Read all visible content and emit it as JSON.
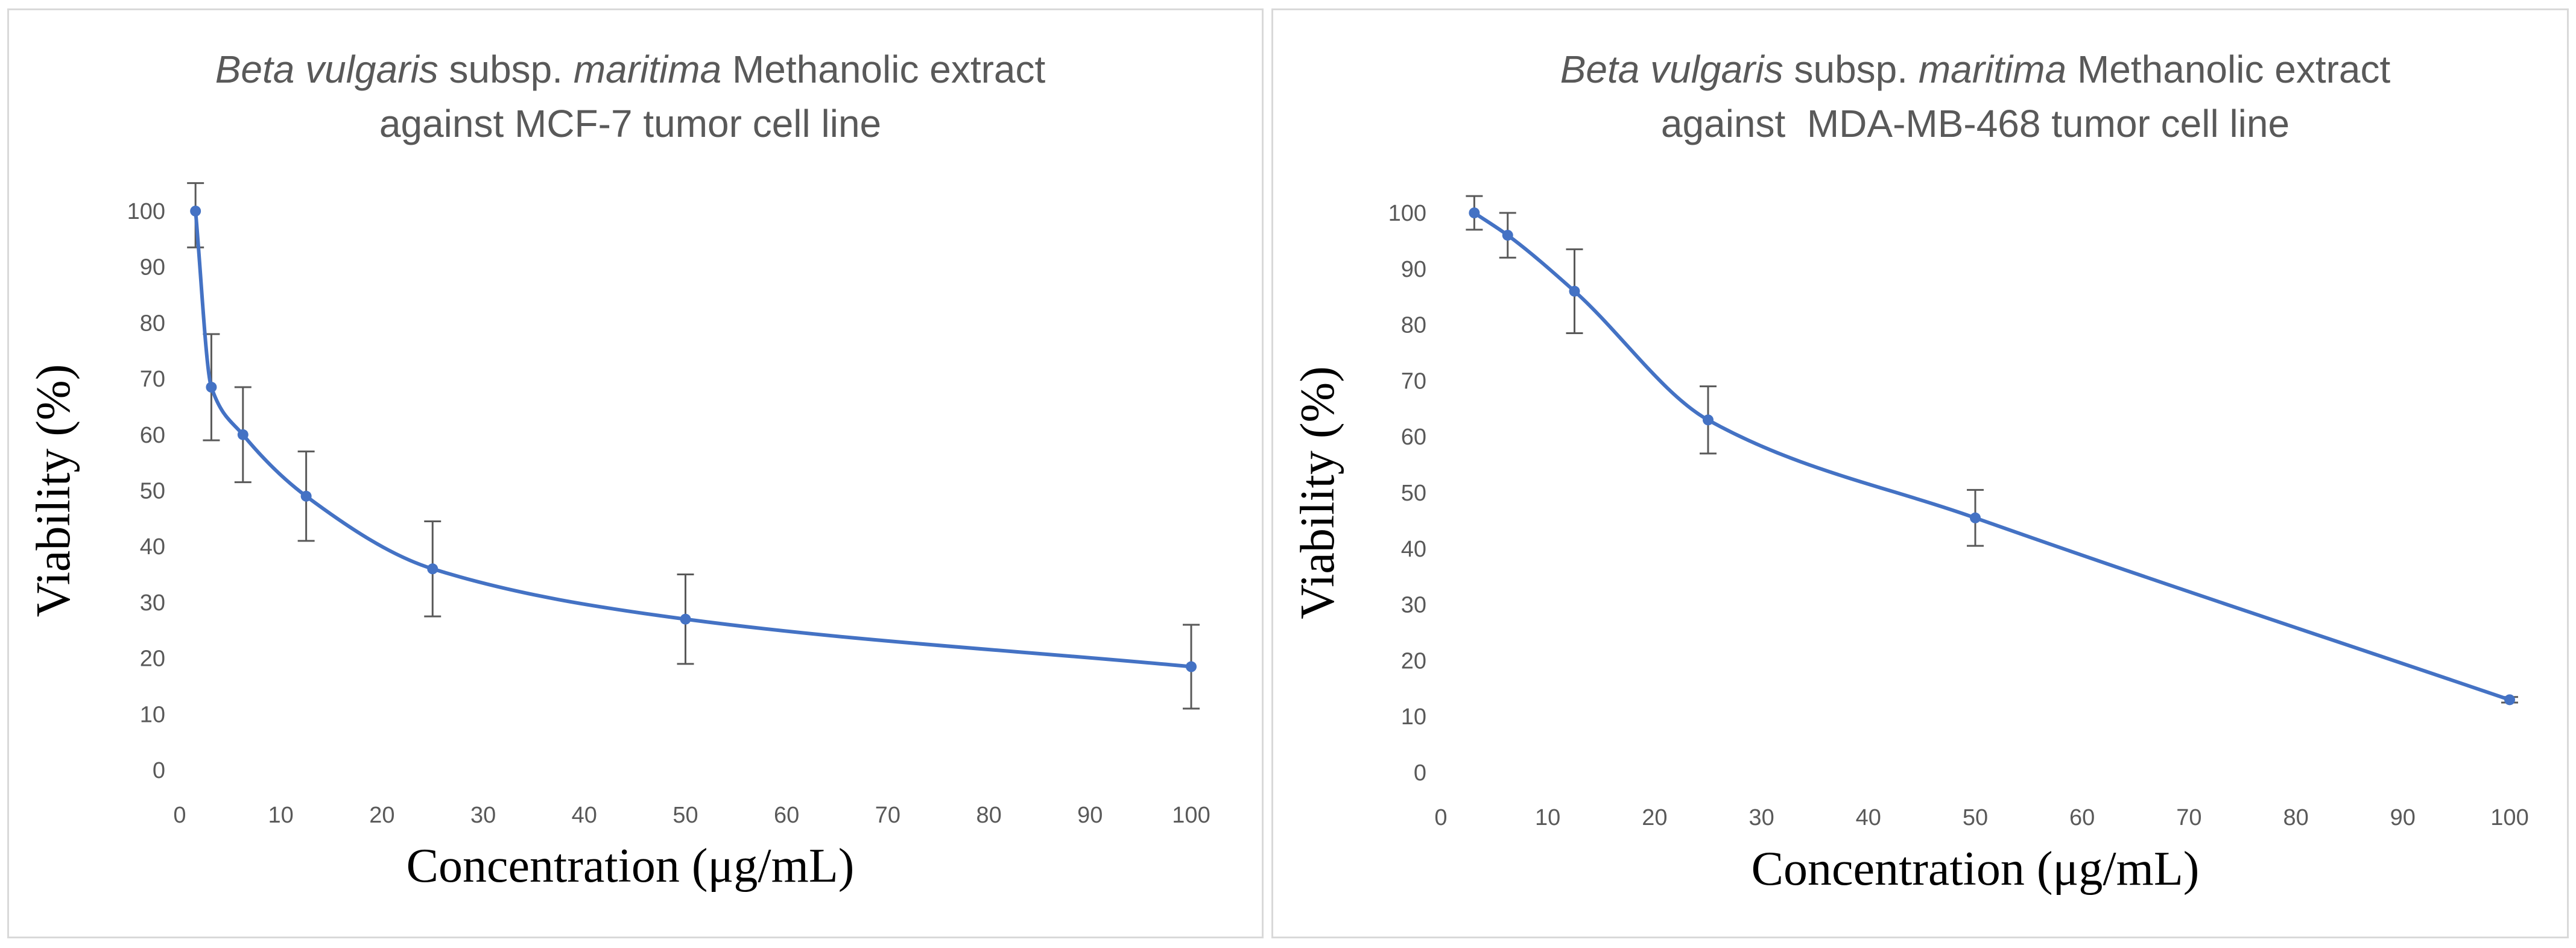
{
  "chart_data": [
    {
      "type": "line",
      "title_parts": [
        {
          "text": "Beta vulgaris",
          "italic": true
        },
        {
          "text": " subsp. ",
          "italic": false
        },
        {
          "text": "maritima",
          "italic": true
        },
        {
          "text": " Methanolic extract",
          "italic": false
        }
      ],
      "title_line2": "against MCF-7 tumor cell line",
      "xlabel": "Concentration (μg/mL)",
      "ylabel": "Viability (%)",
      "xlim": [
        0,
        100
      ],
      "ylim": [
        0,
        100
      ],
      "xticks": [
        0,
        10,
        20,
        30,
        40,
        50,
        60,
        70,
        80,
        90,
        100
      ],
      "yticks": [
        0,
        10,
        20,
        30,
        40,
        50,
        60,
        70,
        80,
        90,
        100
      ],
      "grid": false,
      "series": [
        {
          "name": "MCF-7",
          "color": "#4472c4",
          "x": [
            1.56,
            3.125,
            6.25,
            12.5,
            25,
            50,
            100
          ],
          "y": [
            100,
            68.5,
            60,
            49,
            36,
            27,
            18.5
          ],
          "err": [
            6.5,
            9.5,
            8.5,
            8,
            8.5,
            8,
            7.5
          ]
        }
      ]
    },
    {
      "type": "line",
      "title_parts": [
        {
          "text": "Beta vulgaris",
          "italic": true
        },
        {
          "text": " subsp. ",
          "italic": false
        },
        {
          "text": "maritima",
          "italic": true
        },
        {
          "text": " Methanolic extract",
          "italic": false
        }
      ],
      "title_line2": "against  MDA-MB-468 tumor cell line",
      "xlabel": "Concentration (μg/mL)",
      "ylabel": "Viability (%)",
      "xlim": [
        0,
        100
      ],
      "ylim": [
        0,
        100
      ],
      "xticks": [
        0,
        10,
        20,
        30,
        40,
        50,
        60,
        70,
        80,
        90,
        100
      ],
      "yticks": [
        0,
        10,
        20,
        30,
        40,
        50,
        60,
        70,
        80,
        90,
        100
      ],
      "grid": false,
      "series": [
        {
          "name": "MDA-MB-468",
          "color": "#4472c4",
          "x": [
            3.125,
            6.25,
            12.5,
            25,
            50,
            100
          ],
          "y": [
            100,
            96,
            86,
            63,
            45.5,
            13
          ],
          "err": [
            3,
            4,
            7.5,
            6,
            5,
            0.5
          ]
        }
      ]
    }
  ]
}
